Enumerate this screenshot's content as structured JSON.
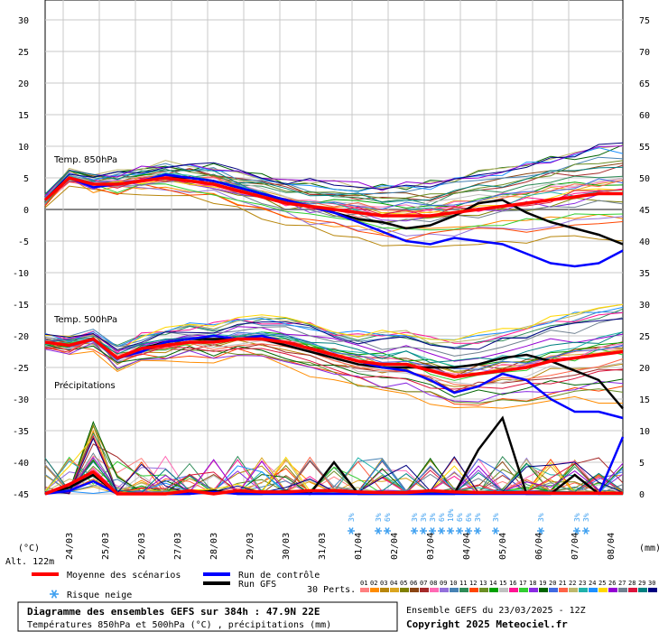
{
  "chart_data": {
    "type": "line",
    "left_axis": {
      "unit": "(°C)",
      "ticks": [
        30,
        25,
        20,
        15,
        10,
        5,
        0,
        -5,
        -10,
        -15,
        -20,
        -25,
        -30,
        -35,
        -40,
        -45
      ],
      "range": [
        -45,
        30
      ]
    },
    "right_axis": {
      "unit": "(mm)",
      "ticks": [
        75,
        70,
        65,
        60,
        55,
        50,
        45,
        40,
        35,
        30,
        25,
        20,
        15,
        10,
        5,
        0
      ],
      "range": [
        0,
        75
      ]
    },
    "dates": [
      "24/03",
      "25/03",
      "26/03",
      "27/03",
      "28/03",
      "29/03",
      "30/03",
      "31/03",
      "01/04",
      "02/04",
      "03/04",
      "04/04",
      "05/04",
      "06/04",
      "07/04",
      "08/04"
    ],
    "altitude": "Alt. 122m",
    "panels": {
      "t850": "Temp. 850hPa",
      "t500": "Temp. 500hPa",
      "precip": "Précipitations"
    },
    "snow_risk": [
      "3%",
      "3%",
      "6%",
      "3%",
      "3%",
      "3%",
      "6%",
      "10%",
      "6%",
      "6%",
      "3%",
      "3%",
      "3%",
      "3%",
      "3%"
    ],
    "series": [
      {
        "name": "Moyenne des scénarios",
        "color": "#ff0000",
        "t850": [
          1.5,
          5,
          4,
          4,
          4.5,
          5,
          4.5,
          4,
          3,
          2,
          1,
          0.5,
          0,
          -0.5,
          -1,
          -1,
          -1,
          -0.5,
          0,
          0.5,
          1,
          1.5,
          2,
          2.5,
          2.5
        ],
        "t500": [
          -21,
          -21.5,
          -20.5,
          -23.5,
          -22,
          -21.5,
          -21,
          -21,
          -20.5,
          -20.5,
          -21,
          -22,
          -23,
          -24,
          -24.5,
          -24.5,
          -25.5,
          -26.5,
          -26,
          -25.5,
          -25,
          -24,
          -23.5,
          -23,
          -22.5
        ],
        "precip_mm": [
          0,
          1.5,
          3.5,
          0,
          0,
          0,
          0.5,
          0,
          0.5,
          0.3,
          0.3,
          0.5,
          0.5,
          0.3,
          0.2,
          0.2,
          0.5,
          0.3,
          0.2,
          0.2,
          0.2,
          0.1,
          0.1,
          0.1,
          0.1
        ]
      },
      {
        "name": "Run de contrôle",
        "color": "#0000ff",
        "t850": [
          1.5,
          5,
          3.5,
          4,
          4.5,
          5.5,
          5,
          4.5,
          3.5,
          2.5,
          1.5,
          0.5,
          -0.5,
          -2,
          -3.5,
          -5,
          -5.5,
          -4.5,
          -5,
          -5.5,
          -7,
          -8.5,
          -9,
          -8.5,
          -6.5
        ],
        "t500": [
          -21,
          -21.5,
          -20.5,
          -23.5,
          -22.5,
          -21,
          -20.5,
          -20,
          -20.5,
          -20,
          -21,
          -22,
          -23,
          -24,
          -25,
          -25.5,
          -27,
          -29,
          -28,
          -26,
          -27,
          -30,
          -32,
          -32,
          -33
        ],
        "precip_mm": [
          0,
          0.5,
          2,
          0,
          0,
          0,
          0,
          0.3,
          0,
          0,
          0,
          0,
          0,
          0,
          0,
          0,
          0,
          0,
          0,
          0,
          0,
          0,
          0,
          0,
          9
        ]
      },
      {
        "name": "Run GFS",
        "color": "#000000",
        "t850": [
          1.5,
          5,
          4,
          4,
          4.5,
          5,
          5,
          4.5,
          3.5,
          2.5,
          1.5,
          0.5,
          -0.5,
          -1.5,
          -2,
          -3,
          -2.5,
          -1,
          1,
          1.5,
          -0.5,
          -2,
          -3,
          -4,
          -5.5
        ],
        "t500": [
          -21,
          -21.5,
          -20.5,
          -23.5,
          -22,
          -21,
          -20.5,
          -20.5,
          -20.5,
          -20.5,
          -21.5,
          -22.5,
          -23.5,
          -24.5,
          -25,
          -25,
          -25,
          -25,
          -24.5,
          -23.5,
          -23,
          -24,
          -25.5,
          -27,
          -31.5
        ],
        "precip_mm": [
          0,
          1,
          3,
          0,
          0,
          0,
          0,
          0.5,
          0,
          0,
          0.5,
          0,
          5,
          0,
          0,
          0,
          0,
          0,
          7,
          12,
          0,
          0,
          3,
          0,
          0
        ]
      }
    ],
    "legend": {
      "mean": "Moyenne des scénarios",
      "control": "Run de contrôle",
      "gfs": "Run GFS",
      "snow": "Risque neige",
      "perts": "30 Perts.",
      "pert_ids": [
        "01",
        "02",
        "03",
        "04",
        "05",
        "06",
        "07",
        "08",
        "09",
        "10",
        "11",
        "12",
        "13",
        "14",
        "15",
        "16",
        "17",
        "18",
        "19",
        "20",
        "21",
        "22",
        "23",
        "24",
        "25",
        "26",
        "27",
        "28",
        "29",
        "30"
      ],
      "pert_colors": [
        "#ff8080",
        "#ff8c00",
        "#b8860b",
        "#daa520",
        "#808000",
        "#8b4513",
        "#a52a2a",
        "#ff69b4",
        "#9370db",
        "#4682b4",
        "#2e8b57",
        "#ff4500",
        "#6b8e23",
        "#00a000",
        "#c0c0c0",
        "#ff1493",
        "#32cd32",
        "#8a2be2",
        "#006400",
        "#4169e1",
        "#ff6347",
        "#bdb76b",
        "#20b2aa",
        "#1e90ff",
        "#ffd700",
        "#9400d3",
        "#708090",
        "#dc143c",
        "#008080",
        "#000080"
      ]
    },
    "title": "Diagramme des ensembles GEFS sur 384h : 47.9N 22E",
    "subtitle": "Températures 850hPa et 500hPa (°C) , précipitations (mm)",
    "run_info": "Ensemble GEFS du 23/03/2025 - 12Z",
    "copyright": "Copyright 2025 Meteociel.fr"
  }
}
